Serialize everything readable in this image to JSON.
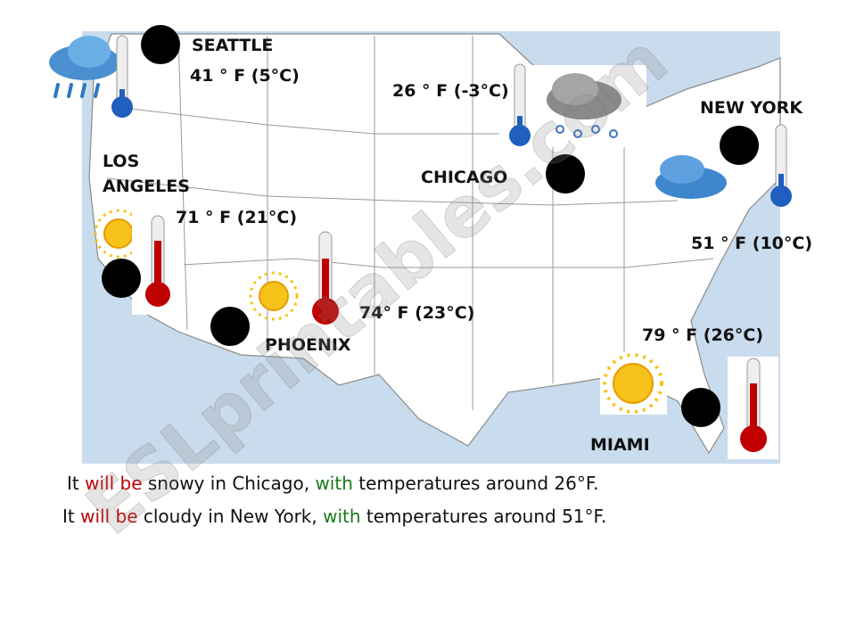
{
  "cities": [
    {
      "name": "SEATTLE",
      "temperature": "41 ° F (5°C)"
    },
    {
      "name": "CHICAGO",
      "temperature": "26 ° F (-3°C)"
    },
    {
      "name": "NEW YORK",
      "temperature": "51 ° F (10°C)"
    },
    {
      "name": "LOS ANGELES",
      "temperature": "71 ° F (21°C)"
    },
    {
      "name": "PHOENIX",
      "temperature": "74° F (23°C)"
    },
    {
      "name": "MIAMI",
      "temperature": "79 ° F (26°C)"
    }
  ],
  "sentences": [
    {
      "parts": [
        "It ",
        "will be",
        " snowy in Chicago, ",
        "with",
        " temperatures around 26°F."
      ]
    },
    {
      "parts": [
        "It ",
        "will be",
        " cloudy in New York, ",
        "with",
        " temperatures around 51°F."
      ]
    }
  ],
  "watermark": "ESLprintables.com"
}
